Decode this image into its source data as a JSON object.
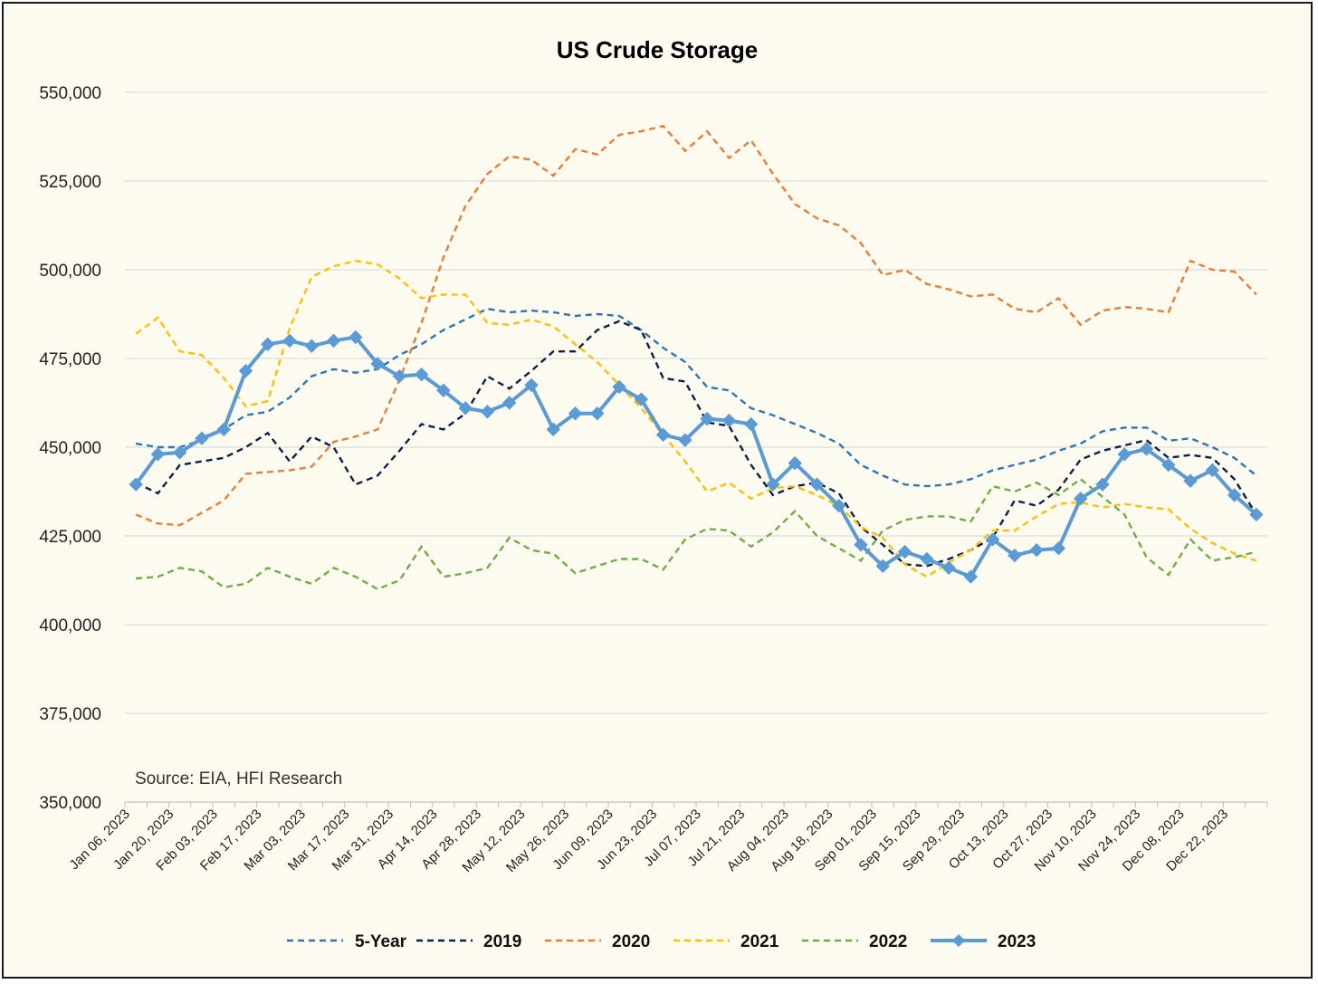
{
  "chart_data": {
    "type": "line",
    "title": "US Crude Storage",
    "source": "Source: EIA, HFI Research",
    "ylim": [
      350000,
      550000
    ],
    "y_ticks": [
      "350,000",
      "375,000",
      "400,000",
      "425,000",
      "450,000",
      "475,000",
      "500,000",
      "525,000",
      "550,000"
    ],
    "y_tick_values": [
      350000,
      375000,
      400000,
      425000,
      450000,
      475000,
      500000,
      525000,
      550000
    ],
    "x_tick_labels": [
      "Jan 06, 2023",
      "Jan 20, 2023",
      "Feb 03, 2023",
      "Feb 17, 2023",
      "Mar 03, 2023",
      "Mar 17, 2023",
      "Mar 31, 2023",
      "Apr 14, 2023",
      "Apr 28, 2023",
      "May 12, 2023",
      "May 26, 2023",
      "Jun 09, 2023",
      "Jun 23, 2023",
      "Jul 07, 2023",
      "Jul 21, 2023",
      "Aug 04, 2023",
      "Aug 18, 2023",
      "Sep 01, 2023",
      "Sep 15, 2023",
      "Sep 29, 2023",
      "Oct 13, 2023",
      "Oct 27, 2023",
      "Nov 10, 2023",
      "Nov 24, 2023",
      "Dec 08, 2023",
      "Dec 22, 2023"
    ],
    "grid": "horizontal",
    "legend_position": "bottom",
    "series": [
      {
        "name": "5-Year",
        "color": "#2e75b6",
        "style": "dashed",
        "values": [
          451000,
          450000,
          450000,
          452000,
          455000,
          459000,
          460000,
          464000,
          470000,
          472000,
          471000,
          472000,
          476000,
          479000,
          483000,
          486000,
          489000,
          488000,
          488500,
          488000,
          487000,
          487500,
          487000,
          483000,
          478000,
          474000,
          467000,
          466000,
          461000,
          459000,
          456500,
          454000,
          451000,
          445000,
          442000,
          439500,
          439000,
          439500,
          441000,
          443500,
          445000,
          446500,
          449000,
          451000,
          454500,
          455500,
          455500,
          451800,
          452500,
          450000,
          447000,
          442000
        ]
      },
      {
        "name": "2019",
        "color": "#0d1f4a",
        "style": "dashed",
        "values": [
          440000,
          437000,
          445000,
          446000,
          447000,
          450000,
          454000,
          446000,
          453000,
          450000,
          439500,
          442000,
          449000,
          456500,
          455000,
          459500,
          470000,
          466500,
          471500,
          477000,
          477000,
          483000,
          485500,
          483000,
          469500,
          468500,
          457000,
          456000,
          445000,
          436500,
          439000,
          440000,
          437000,
          427500,
          422500,
          417000,
          416500,
          418500,
          421000,
          424500,
          435000,
          433500,
          438000,
          446500,
          449000,
          450500,
          452000,
          447000,
          447800,
          447000,
          441000,
          431000
        ]
      },
      {
        "name": "2020",
        "color": "#ed7d31",
        "style": "dashed",
        "values": [
          431000,
          428500,
          428000,
          431500,
          435000,
          442500,
          443000,
          443500,
          444500,
          451500,
          453000,
          455000,
          469000,
          485000,
          503500,
          518000,
          527000,
          532000,
          531000,
          526500,
          534000,
          532500,
          538000,
          539000,
          540500,
          533500,
          539000,
          531500,
          536500,
          527000,
          518500,
          514500,
          512500,
          507500,
          498500,
          500000,
          496000,
          494500,
          492500,
          493000,
          489000,
          488000,
          492000,
          484500,
          488500,
          489500,
          489000,
          488000,
          502500,
          500000,
          499500,
          493000
        ]
      },
      {
        "name": "2021",
        "color": "#ffc000",
        "style": "dashed",
        "values": [
          482000,
          486500,
          477000,
          476000,
          469500,
          461500,
          463000,
          483500,
          498000,
          501000,
          502500,
          501500,
          497500,
          492000,
          493000,
          493000,
          485000,
          484500,
          486000,
          484000,
          479000,
          474000,
          467500,
          461000,
          453500,
          446000,
          437500,
          440000,
          435500,
          438500,
          439000,
          436500,
          433500,
          427500,
          424500,
          417000,
          413500,
          417500,
          421000,
          426500,
          426500,
          430500,
          434000,
          434500,
          433000,
          434000,
          433000,
          432500,
          427000,
          423000,
          420000,
          418000
        ]
      },
      {
        "name": "2022",
        "color": "#70ad47",
        "style": "dashed",
        "values": [
          413000,
          413500,
          416000,
          415000,
          410500,
          411500,
          416000,
          413500,
          411500,
          416000,
          413500,
          410000,
          412500,
          422000,
          413500,
          414500,
          416000,
          424500,
          421000,
          420000,
          414500,
          416500,
          418500,
          418500,
          415500,
          424000,
          427000,
          426500,
          422000,
          426000,
          432000,
          425000,
          421500,
          418000,
          426500,
          429500,
          430500,
          430500,
          429000,
          439000,
          437500,
          440000,
          436500,
          441000,
          436000,
          431000,
          419000,
          414000,
          424000,
          418000,
          419000,
          420500
        ]
      },
      {
        "name": "2023",
        "color": "#5b9bd5",
        "style": "solid-markers",
        "values": [
          439500,
          448000,
          448500,
          452500,
          455000,
          471500,
          479000,
          480000,
          478500,
          480000,
          481000,
          473500,
          470000,
          470500,
          466000,
          461000,
          460000,
          462500,
          467500,
          455000,
          459500,
          459500,
          467000,
          463500,
          453500,
          452000,
          458000,
          457500,
          456500,
          439500,
          445500,
          439500,
          433500,
          422500,
          416500,
          420500,
          418500,
          416000,
          413500,
          424000,
          419500,
          421000,
          421500,
          435500,
          439500,
          448000,
          449500,
          445000,
          440500,
          443500,
          436500,
          431000
        ]
      }
    ]
  }
}
